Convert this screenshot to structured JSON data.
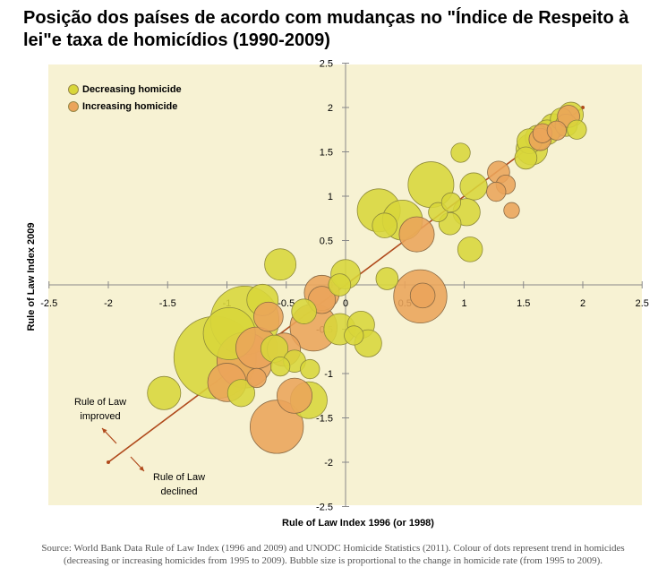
{
  "title": "Posição dos países de acordo com mudanças no \"Índice de Respeito à lei\"e taxa de homicídios (1990-2009)",
  "source": "Source: World Bank Data Rule of Law Index (1996 and 2009) and UNODC Homicide Statistics (2011). Colour of dots represent trend in homicides (decreasing or increasing homicides from 1995 to 2009). Bubble size is proportional to the change in homicide rate (from 1995 to 2009).",
  "annotations": {
    "improved": "Rule of Law improved",
    "declined": "Rule of Law declined"
  },
  "colors": {
    "decreasing": "#d8d63a",
    "increasing": "#eba45a",
    "background": "#f7f2d3",
    "trendline": "#b04a1c"
  },
  "chart_data": {
    "type": "scatter",
    "xlabel": "Rule of Law Index 1996 (or 1998)",
    "ylabel": "Rule of Law Index 2009",
    "xlim": [
      -2.5,
      2.5
    ],
    "ylim": [
      -2.5,
      2.5
    ],
    "xticks": [
      "-2.5",
      "-2",
      "-1.5",
      "-1",
      "-0.5",
      "0",
      "0.5",
      "1",
      "1.5",
      "2",
      "2.5"
    ],
    "yticks": [
      "2.5",
      "2",
      "1.5",
      "1",
      "0.5",
      "0",
      "-0.5",
      "-1",
      "-1.5",
      "-2",
      "-2.5"
    ],
    "legend_position": "top-left",
    "grid": false,
    "trendline": [
      [
        -2,
        -2
      ],
      [
        2,
        2
      ]
    ],
    "series": [
      {
        "name": "Decreasing homicide",
        "points": [
          {
            "x": 1.9,
            "y": 1.92,
            "size": 0.05
          },
          {
            "x": 1.82,
            "y": 1.87,
            "size": 0.04
          },
          {
            "x": 1.86,
            "y": 1.8,
            "size": 0.04
          },
          {
            "x": 1.75,
            "y": 1.79,
            "size": 0.05
          },
          {
            "x": 1.7,
            "y": 1.72,
            "size": 0.05
          },
          {
            "x": 1.62,
            "y": 1.66,
            "size": 0.05
          },
          {
            "x": 1.55,
            "y": 1.62,
            "size": 0.05
          },
          {
            "x": 1.57,
            "y": 1.53,
            "size": 0.08
          },
          {
            "x": 1.52,
            "y": 1.43,
            "size": 0.04
          },
          {
            "x": 1.95,
            "y": 1.75,
            "size": 0.03
          },
          {
            "x": 0.97,
            "y": 1.49,
            "size": 0.03
          },
          {
            "x": 1.08,
            "y": 1.11,
            "size": 0.06
          },
          {
            "x": 0.72,
            "y": 1.13,
            "size": 0.17
          },
          {
            "x": 0.28,
            "y": 0.84,
            "size": 0.15
          },
          {
            "x": 0.33,
            "y": 0.67,
            "size": 0.05
          },
          {
            "x": 0.48,
            "y": 0.73,
            "size": 0.13
          },
          {
            "x": 0.78,
            "y": 0.82,
            "size": 0.03
          },
          {
            "x": 0.89,
            "y": 0.93,
            "size": 0.03
          },
          {
            "x": 1.02,
            "y": 0.82,
            "size": 0.06
          },
          {
            "x": 0.88,
            "y": 0.69,
            "size": 0.04
          },
          {
            "x": 1.05,
            "y": 0.4,
            "size": 0.05
          },
          {
            "x": -0.55,
            "y": 0.23,
            "size": 0.08
          },
          {
            "x": 0.0,
            "y": 0.12,
            "size": 0.07
          },
          {
            "x": 0.35,
            "y": 0.07,
            "size": 0.04
          },
          {
            "x": -0.05,
            "y": 0.0,
            "size": 0.04
          },
          {
            "x": -0.7,
            "y": -0.17,
            "size": 0.08
          },
          {
            "x": -0.35,
            "y": -0.3,
            "size": 0.05
          },
          {
            "x": -0.85,
            "y": -0.4,
            "size": 0.38
          },
          {
            "x": -0.98,
            "y": -0.55,
            "size": 0.22
          },
          {
            "x": -0.05,
            "y": -0.5,
            "size": 0.08
          },
          {
            "x": 0.13,
            "y": -0.45,
            "size": 0.06
          },
          {
            "x": 0.07,
            "y": -0.57,
            "size": 0.03
          },
          {
            "x": 0.19,
            "y": -0.66,
            "size": 0.06
          },
          {
            "x": -1.1,
            "y": -0.82,
            "size": 0.55
          },
          {
            "x": -0.6,
            "y": -0.72,
            "size": 0.06
          },
          {
            "x": -0.55,
            "y": -0.92,
            "size": 0.03
          },
          {
            "x": -0.43,
            "y": -0.86,
            "size": 0.04
          },
          {
            "x": -0.3,
            "y": -0.95,
            "size": 0.03
          },
          {
            "x": -0.88,
            "y": -1.22,
            "size": 0.06
          },
          {
            "x": -0.31,
            "y": -1.3,
            "size": 0.11
          },
          {
            "x": -1.53,
            "y": -1.22,
            "size": 0.09
          }
        ]
      },
      {
        "name": "Increasing homicide",
        "points": [
          {
            "x": 1.88,
            "y": 1.9,
            "size": 0.04
          },
          {
            "x": 1.66,
            "y": 1.71,
            "size": 0.03
          },
          {
            "x": 1.64,
            "y": 1.64,
            "size": 0.04
          },
          {
            "x": 1.78,
            "y": 1.74,
            "size": 0.03
          },
          {
            "x": 1.29,
            "y": 1.27,
            "size": 0.04
          },
          {
            "x": 1.35,
            "y": 1.13,
            "size": 0.03
          },
          {
            "x": 1.27,
            "y": 1.05,
            "size": 0.03
          },
          {
            "x": 1.4,
            "y": 0.84,
            "size": 0.02
          },
          {
            "x": 0.6,
            "y": 0.57,
            "size": 0.1
          },
          {
            "x": 0.63,
            "y": -0.13,
            "size": 0.23
          },
          {
            "x": 0.65,
            "y": -0.12,
            "size": 0.05
          },
          {
            "x": -0.2,
            "y": -0.09,
            "size": 0.1
          },
          {
            "x": -0.2,
            "y": -0.17,
            "size": 0.06
          },
          {
            "x": -0.27,
            "y": -0.48,
            "size": 0.18
          },
          {
            "x": -0.65,
            "y": -0.36,
            "size": 0.07
          },
          {
            "x": -0.52,
            "y": -0.73,
            "size": 0.09
          },
          {
            "x": -0.75,
            "y": -0.71,
            "size": 0.14
          },
          {
            "x": -0.85,
            "y": -0.85,
            "size": 0.25
          },
          {
            "x": -1.0,
            "y": -1.1,
            "size": 0.12
          },
          {
            "x": -0.43,
            "y": -1.25,
            "size": 0.1
          },
          {
            "x": -0.58,
            "y": -1.6,
            "size": 0.23
          },
          {
            "x": -0.75,
            "y": -1.05,
            "size": 0.03
          }
        ]
      }
    ]
  }
}
